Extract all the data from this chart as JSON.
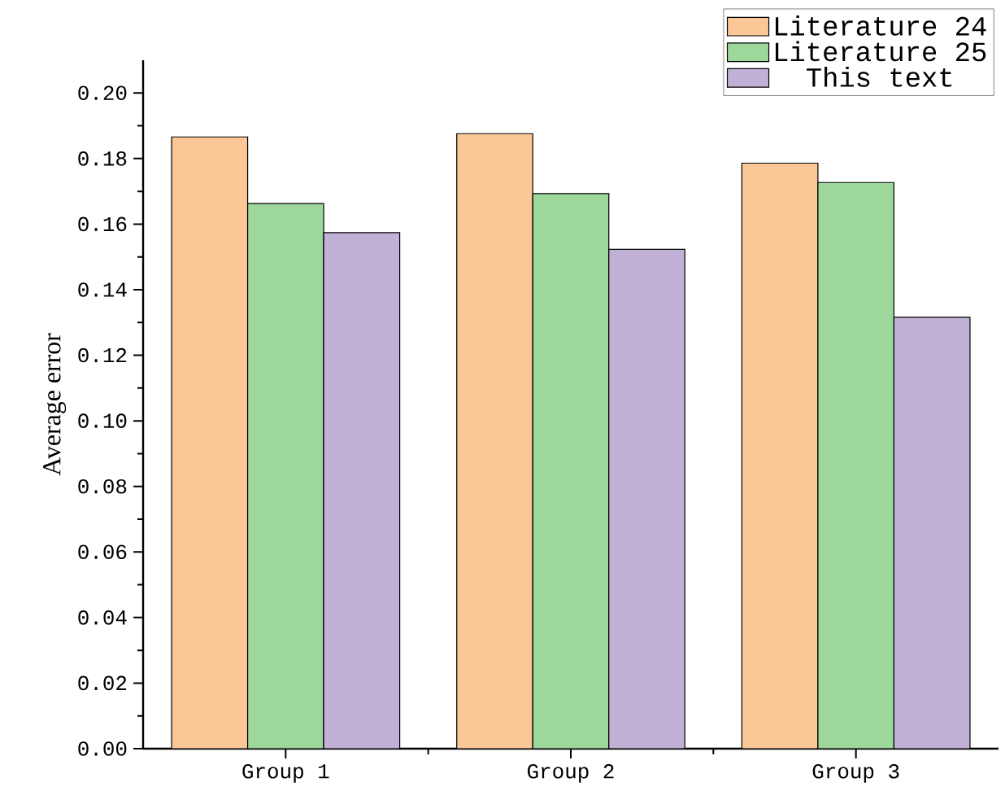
{
  "chart_data": {
    "type": "bar",
    "ylabel": "Average error",
    "categories": [
      "Group 1",
      "Group 2",
      "Group 3"
    ],
    "series": [
      {
        "name": "Literature 24",
        "color": "#fbc797",
        "values": [
          0.1866,
          0.1876,
          0.1786
        ]
      },
      {
        "name": "Literature 25",
        "color": "#9dd79c",
        "values": [
          0.1663,
          0.1693,
          0.1727
        ]
      },
      {
        "name": "This text",
        "color": "#c2b1d7",
        "values": [
          0.1574,
          0.1523,
          0.1316
        ]
      }
    ],
    "ylim": [
      0,
      0.21
    ],
    "yticks": [
      {
        "value": 0,
        "label": "0.00"
      },
      {
        "value": 0.02,
        "label": "0.02"
      },
      {
        "value": 0.04,
        "label": "0.04"
      },
      {
        "value": 0.06,
        "label": "0.06"
      },
      {
        "value": 0.08,
        "label": "0.08"
      },
      {
        "value": 0.1,
        "label": "0.10"
      },
      {
        "value": 0.12,
        "label": "0.12"
      },
      {
        "value": 0.14,
        "label": "0.14"
      },
      {
        "value": 0.16,
        "label": "0.16"
      },
      {
        "value": 0.18,
        "label": "0.18"
      },
      {
        "value": 0.2,
        "label": "0.20"
      }
    ],
    "legend": "top right",
    "grid": false
  }
}
